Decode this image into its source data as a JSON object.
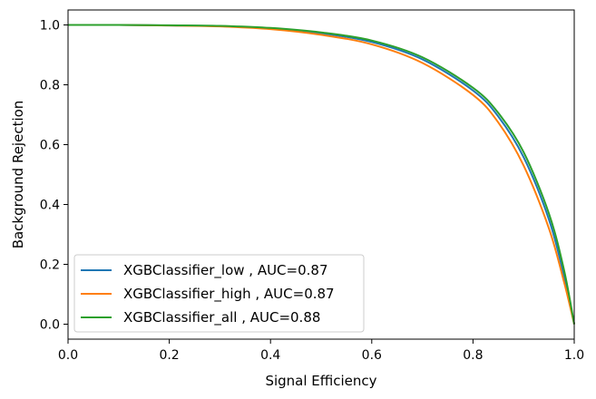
{
  "chart_data": {
    "type": "line",
    "xlabel": "Signal Efficiency",
    "ylabel": "Background Rejection",
    "xlim": [
      0,
      1.0
    ],
    "ylim": [
      -0.05,
      1.05
    ],
    "xticks": [
      "0.0",
      "0.2",
      "0.4",
      "0.6",
      "0.8",
      "1.0"
    ],
    "yticks": [
      "0.0",
      "0.2",
      "0.4",
      "0.6",
      "0.8",
      "1.0"
    ],
    "legend_position": "lower-left",
    "grid": false,
    "series": [
      {
        "name": "XGBClassifier_low , AUC=0.87",
        "color": "#1f77b4",
        "x": [
          0.0,
          0.1,
          0.2,
          0.3,
          0.4,
          0.5,
          0.6,
          0.7,
          0.8,
          0.85,
          0.9,
          0.95,
          0.98,
          1.0
        ],
        "y": [
          1.0,
          1.0,
          0.998,
          0.996,
          0.988,
          0.972,
          0.943,
          0.885,
          0.781,
          0.694,
          0.558,
          0.35,
          0.16,
          0.0
        ]
      },
      {
        "name": "XGBClassifier_high , AUC=0.87",
        "color": "#ff7f0e",
        "x": [
          0.0,
          0.1,
          0.2,
          0.3,
          0.4,
          0.5,
          0.6,
          0.7,
          0.8,
          0.85,
          0.9,
          0.95,
          0.98,
          1.0
        ],
        "y": [
          1.0,
          1.0,
          0.998,
          0.995,
          0.986,
          0.967,
          0.935,
          0.873,
          0.766,
          0.674,
          0.53,
          0.32,
          0.14,
          0.0
        ]
      },
      {
        "name": "XGBClassifier_all , AUC=0.88",
        "color": "#2ca02c",
        "x": [
          0.0,
          0.1,
          0.2,
          0.3,
          0.4,
          0.5,
          0.6,
          0.7,
          0.8,
          0.85,
          0.9,
          0.95,
          0.98,
          1.0
        ],
        "y": [
          1.0,
          1.0,
          0.999,
          0.997,
          0.99,
          0.975,
          0.948,
          0.892,
          0.79,
          0.706,
          0.575,
          0.37,
          0.18,
          0.0
        ]
      }
    ]
  }
}
